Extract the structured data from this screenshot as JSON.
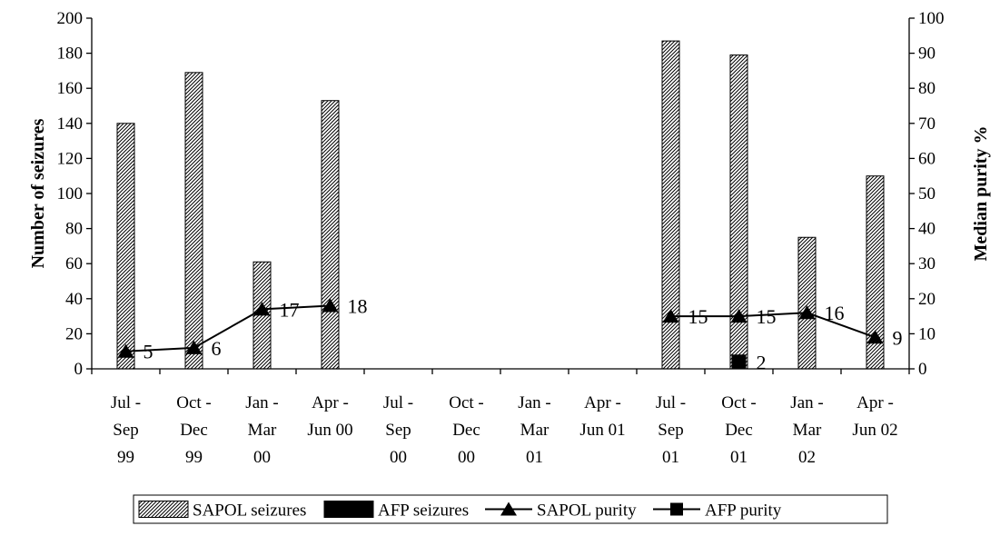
{
  "chart_data": {
    "type": "bar",
    "title": "",
    "categories": [
      [
        "Jul -",
        "Sep",
        "99"
      ],
      [
        "Oct -",
        "Dec",
        "99"
      ],
      [
        "Jan -",
        "Mar",
        "00"
      ],
      [
        "Apr -",
        "Jun 00"
      ],
      [
        "Jul -",
        "Sep",
        "00"
      ],
      [
        "Oct -",
        "Dec",
        "00"
      ],
      [
        "Jan -",
        "Mar",
        "01"
      ],
      [
        "Apr -",
        "Jun 01"
      ],
      [
        "Jul -",
        "Sep",
        "01"
      ],
      [
        "Oct -",
        "Dec",
        "01"
      ],
      [
        "Jan -",
        "Mar",
        "02"
      ],
      [
        "Apr -",
        "Jun 02"
      ]
    ],
    "ylabel_left": "Number of seizures",
    "ylabel_right": "Median purity %",
    "ylim_left": [
      0,
      200
    ],
    "ylim_right": [
      0,
      100
    ],
    "yticks_left": [
      "0",
      "20",
      "40",
      "60",
      "80",
      "100",
      "120",
      "140",
      "160",
      "180",
      "200"
    ],
    "yticks_right": [
      "0",
      "10",
      "20",
      "30",
      "40",
      "50",
      "60",
      "70",
      "80",
      "90",
      "100"
    ],
    "grid": false,
    "legend_position": "bottom",
    "series": [
      {
        "name": "SAPOL seizures",
        "kind": "bar",
        "axis": "left",
        "pattern": "diagonal-hatch",
        "values": [
          140,
          169,
          61,
          153,
          null,
          null,
          null,
          null,
          187,
          179,
          75,
          110
        ]
      },
      {
        "name": "AFP seizures",
        "kind": "bar",
        "axis": "left",
        "color": "#000000",
        "values": [
          null,
          null,
          null,
          null,
          null,
          null,
          null,
          null,
          null,
          null,
          null,
          null
        ]
      },
      {
        "name": "SAPOL purity",
        "kind": "line",
        "axis": "right",
        "marker": "triangle",
        "color": "#000000",
        "values": [
          5,
          6,
          17,
          18,
          null,
          null,
          null,
          null,
          15,
          15,
          16,
          9
        ],
        "labels": [
          "5",
          "6",
          "17",
          "18",
          "",
          "",
          "",
          "",
          "15",
          "15",
          "16",
          "9"
        ]
      },
      {
        "name": "AFP purity",
        "kind": "line",
        "axis": "right",
        "marker": "square",
        "color": "#000000",
        "values": [
          null,
          null,
          null,
          null,
          null,
          null,
          null,
          null,
          null,
          2,
          null,
          null
        ],
        "labels": [
          "",
          "",
          "",
          "",
          "",
          "",
          "",
          "",
          "",
          "2",
          "",
          ""
        ]
      }
    ]
  }
}
